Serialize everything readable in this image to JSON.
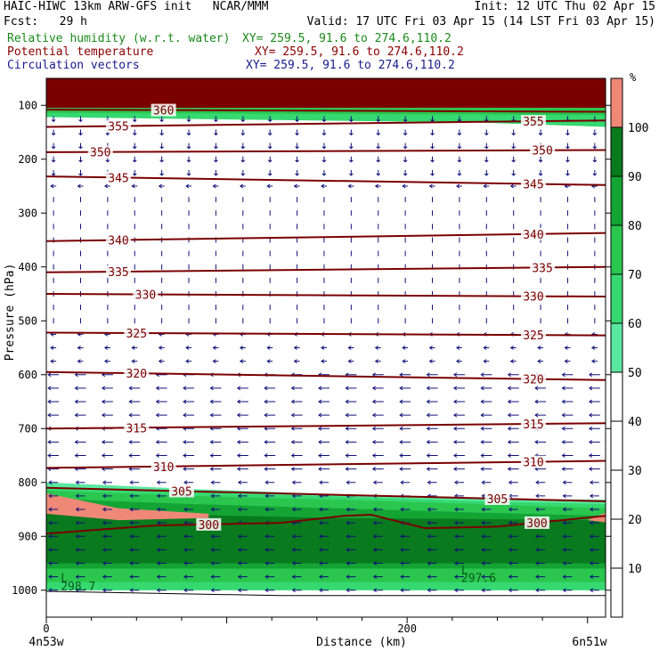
{
  "header": {
    "left_line1": "HAIC-HIWC 13km ARW-GFS init   NCAR/MMM",
    "left_line2": "Fcst:   29 h",
    "init": "Init: 12 UTC Thu 02 Apr 15",
    "valid": "Valid: 17 UTC Fri 03 Apr 15 (14 LST Fri 03 Apr 15)",
    "field1_label": "Relative humidity (w.r.t. water)",
    "field1_xy": "XY= 259.5, 91.6 to 274.6,110.2",
    "field2_label": "Potential temperature",
    "field2_xy": "XY= 259.5, 91.6 to 274.6,110.2",
    "field3_label": "Circulation vectors",
    "field3_xy": "XY= 259.5, 91.6 to 274.6,110.2"
  },
  "colors": {
    "field1": "#1a8a1a",
    "field2": "#8b0000",
    "field3": "#1a1a8c",
    "contour": "#7a0000",
    "vector": "#10107a"
  },
  "chart_data": {
    "type": "vertical cross-section",
    "xlabel": "Distance (km)",
    "ylabel": "Pressure (hPa)",
    "x_range": [
      0,
      310
    ],
    "y_range": [
      1050,
      50
    ],
    "x_ticks": [
      {
        "value": 0,
        "label": "0"
      },
      {
        "value": 200,
        "label": "200"
      }
    ],
    "y_ticks": [
      100,
      200,
      300,
      400,
      500,
      600,
      700,
      800,
      900,
      1000
    ],
    "x_endpoints": {
      "left": "4n53w",
      "right": "6n51w"
    },
    "colorbar": {
      "unit": "%",
      "levels": [
        10,
        20,
        30,
        40,
        50,
        60,
        70,
        80,
        90,
        100
      ],
      "bins": [
        {
          "from": 0,
          "to": 50,
          "color": "#ffffff"
        },
        {
          "from": 50,
          "to": 60,
          "color": "#5ae8a0"
        },
        {
          "from": 60,
          "to": 70,
          "color": "#36d870"
        },
        {
          "from": 70,
          "to": 80,
          "color": "#2ac64e"
        },
        {
          "from": 80,
          "to": 90,
          "color": "#14a434"
        },
        {
          "from": 90,
          "to": 100,
          "color": "#0a7a1e"
        },
        {
          "from": 100,
          "to": 110,
          "color": "#f08878"
        }
      ]
    },
    "theta_contours": [
      {
        "label": "360",
        "x": [
          0,
          310
        ],
        "p": [
          108,
          112
        ],
        "label_x": [
          65
        ]
      },
      {
        "label": "355",
        "x": [
          0,
          310
        ],
        "p": [
          140,
          128
        ],
        "label_x": [
          40,
          270
        ]
      },
      {
        "label": "350",
        "x": [
          0,
          310
        ],
        "p": [
          187,
          183
        ],
        "label_x": [
          30,
          275
        ]
      },
      {
        "label": "345",
        "x": [
          0,
          310
        ],
        "p": [
          232,
          248
        ],
        "label_x": [
          40,
          270
        ]
      },
      {
        "label": "340",
        "x": [
          0,
          310
        ],
        "p": [
          352,
          337
        ],
        "label_x": [
          40,
          270
        ]
      },
      {
        "label": "335",
        "x": [
          0,
          310
        ],
        "p": [
          410,
          400
        ],
        "label_x": [
          40,
          275
        ]
      },
      {
        "label": "330",
        "x": [
          0,
          310
        ],
        "p": [
          450,
          455
        ],
        "label_x": [
          55,
          270
        ]
      },
      {
        "label": "325",
        "x": [
          0,
          310
        ],
        "p": [
          522,
          527
        ],
        "label_x": [
          50,
          270
        ]
      },
      {
        "label": "320",
        "x": [
          0,
          310
        ],
        "p": [
          595,
          610
        ],
        "label_x": [
          50,
          270
        ]
      },
      {
        "label": "315",
        "x": [
          0,
          310
        ],
        "p": [
          700,
          690
        ],
        "label_x": [
          50,
          270
        ]
      },
      {
        "label": "310",
        "x": [
          0,
          310
        ],
        "p": [
          773,
          760
        ],
        "label_x": [
          65,
          270
        ]
      },
      {
        "label": "305",
        "x": [
          0,
          310
        ],
        "p": [
          810,
          835
        ],
        "label_x": [
          75,
          250
        ]
      },
      {
        "label": "300",
        "x": [
          0,
          60,
          130,
          165,
          180,
          210,
          250,
          310
        ],
        "p": [
          895,
          880,
          875,
          862,
          860,
          885,
          882,
          862
        ],
        "label_x": [
          90,
          272
        ]
      }
    ],
    "annotations": [
      {
        "text": "L",
        "x": 8,
        "p": 985
      },
      {
        "text": "298.7",
        "x": 8,
        "p": 1000
      },
      {
        "text": "L",
        "x": 230,
        "p": 970
      },
      {
        "text": "297.6",
        "x": 230,
        "p": 985
      }
    ],
    "rh_regions": [
      {
        "level": 90,
        "pressure_top": 50,
        "pressure_bottom": 105
      },
      {
        "level": 60,
        "pressure_top": 105,
        "pressure_bottom": 135
      },
      {
        "level": 90,
        "pressure_top": 845,
        "pressure_bottom": 970
      },
      {
        "level": 100,
        "pressure_top": 820,
        "pressure_bottom": 860
      }
    ]
  }
}
